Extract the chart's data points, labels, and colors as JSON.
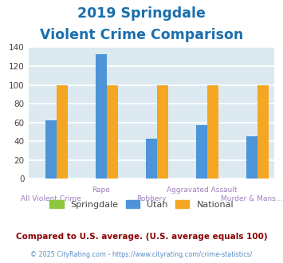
{
  "title_line1": "2019 Springdale",
  "title_line2": "Violent Crime Comparison",
  "title_color": "#1a6fad",
  "x_labels_top": [
    "",
    "Rape",
    "",
    "Aggravated Assault",
    ""
  ],
  "x_labels_bottom": [
    "All Violent Crime",
    "",
    "Robbery",
    "",
    "Murder & Mans..."
  ],
  "x_label_color": "#9b7fbf",
  "springdale_values": [
    0,
    0,
    0,
    0,
    0
  ],
  "utah_values": [
    62,
    133,
    43,
    57,
    45
  ],
  "national_values": [
    100,
    100,
    100,
    100,
    100
  ],
  "springdale_color": "#8dc63f",
  "utah_color": "#4d94d9",
  "national_color": "#f5a623",
  "ylim": [
    0,
    140
  ],
  "yticks": [
    0,
    20,
    40,
    60,
    80,
    100,
    120,
    140
  ],
  "background_color": "#dce9f0",
  "grid_color": "#ffffff",
  "legend_labels": [
    "Springdale",
    "Utah",
    "National"
  ],
  "footnote1": "Compared to U.S. average. (U.S. average equals 100)",
  "footnote2": "© 2025 CityRating.com - https://www.cityrating.com/crime-statistics/",
  "footnote1_color": "#8b0000",
  "footnote2_color": "#5b8dc8"
}
